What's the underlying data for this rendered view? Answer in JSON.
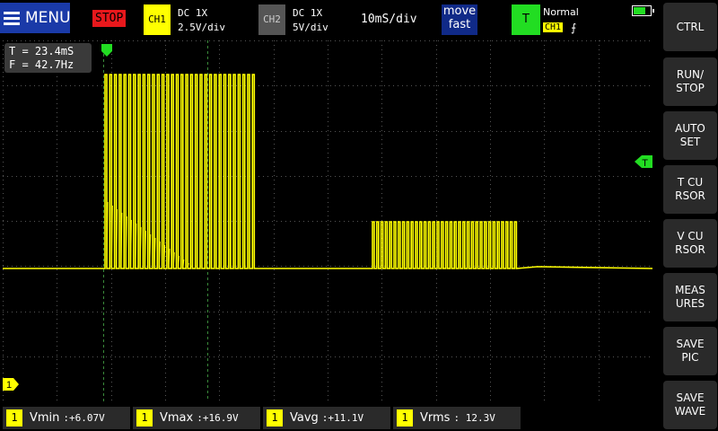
{
  "topbar": {
    "menu_label": "MENU",
    "run_state": "STOP",
    "ch1": {
      "tag": "CH1",
      "coupling": "DC  1X",
      "scale": "2.5V/div"
    },
    "ch2": {
      "tag": "CH2",
      "coupling": "DC  1X",
      "scale": "5V/div"
    },
    "timebase": "10mS/div",
    "move": {
      "line1": "move",
      "line2": "fast"
    },
    "trigger": {
      "mode_letter": "T",
      "mode": "Normal",
      "source": "CH1",
      "edge": "⨍"
    },
    "battery_level": 0.7
  },
  "readout": {
    "period": "T = 23.4mS",
    "frequency": "F = 42.7Hz"
  },
  "markers": {
    "trigger_level": "T",
    "ch1_ground": "1"
  },
  "sidebar": [
    "CTRL",
    "RUN/\nSTOP",
    "AUTO\nSET",
    "T CU\nRSOR",
    "V CU\nRSOR",
    "MEAS\nURES",
    "SAVE\nPIC",
    "SAVE\nWAVE"
  ],
  "measurements": [
    {
      "ch": "1",
      "label": "Vmin",
      "value": ":+6.07V"
    },
    {
      "ch": "1",
      "label": "Vmax",
      "value": ":+16.9V"
    },
    {
      "ch": "1",
      "label": "Vavg",
      "value": ":+11.1V"
    },
    {
      "ch": "1",
      "label": "Vrms",
      "value": ": 12.3V"
    }
  ],
  "colors": {
    "ch1": "#ffff00",
    "trigger": "#22dd22",
    "stop": "#e8181c",
    "grid": "#555555"
  }
}
